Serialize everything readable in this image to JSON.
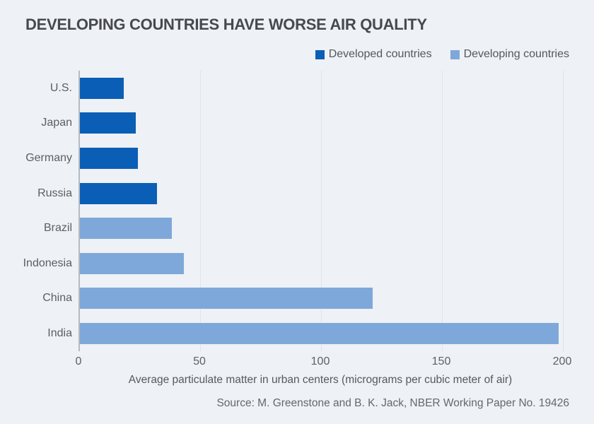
{
  "colors": {
    "background": "#eef1f5",
    "gridline": "#e0e4e9",
    "axis_line": "#b5bbc1",
    "title_text": "#47494b",
    "category_text": "#5b5f63",
    "tick_text": "#5d6165",
    "axis_label_text": "#55595c",
    "source_text": "#64686c",
    "developed_blue": "#0b5eb5",
    "developing_blue": "#7fa8da"
  },
  "chart_data": {
    "type": "bar",
    "orientation": "horizontal",
    "title": "DEVELOPING COUNTRIES HAVE WORSE AIR QUALITY",
    "categories": [
      "U.S.",
      "Japan",
      "Germany",
      "Russia",
      "Brazil",
      "Indonesia",
      "China",
      "India"
    ],
    "values": [
      18,
      23,
      24,
      32,
      38,
      43,
      121,
      198
    ],
    "series_of": [
      "developed",
      "developed",
      "developed",
      "developed",
      "developing",
      "developing",
      "developing",
      "developing"
    ],
    "legend": [
      {
        "key": "developed",
        "label": "Developed countries",
        "color": "#0b5eb5"
      },
      {
        "key": "developing",
        "label": "Developing countries",
        "color": "#7fa8da"
      }
    ],
    "legend_position": "top-right",
    "xlabel": "Average particulate matter in urban centers (micrograms per cubic meter of air)",
    "xlim": [
      0,
      200
    ],
    "xticks": [
      0,
      50,
      100,
      150,
      200
    ],
    "grid": "vertical-only",
    "source": "Source: M. Greenstone and B. K. Jack, NBER Working Paper No. 19426"
  }
}
